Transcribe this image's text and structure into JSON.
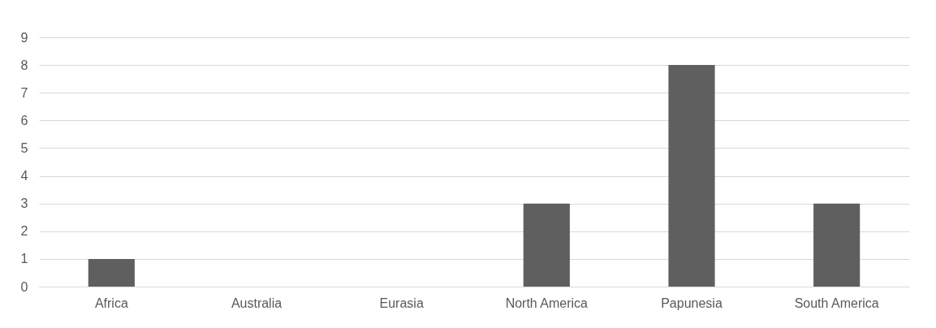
{
  "chart_data": {
    "type": "bar",
    "categories": [
      "Africa",
      "Australia",
      "Eurasia",
      "North America",
      "Papunesia",
      "South America"
    ],
    "values": [
      1,
      0,
      0,
      3,
      8,
      3
    ],
    "color": "#5f5f5f",
    "ylim": [
      0,
      9
    ],
    "yticks": [
      0,
      1,
      2,
      3,
      4,
      5,
      6,
      7,
      8,
      9
    ],
    "grid": "y"
  }
}
